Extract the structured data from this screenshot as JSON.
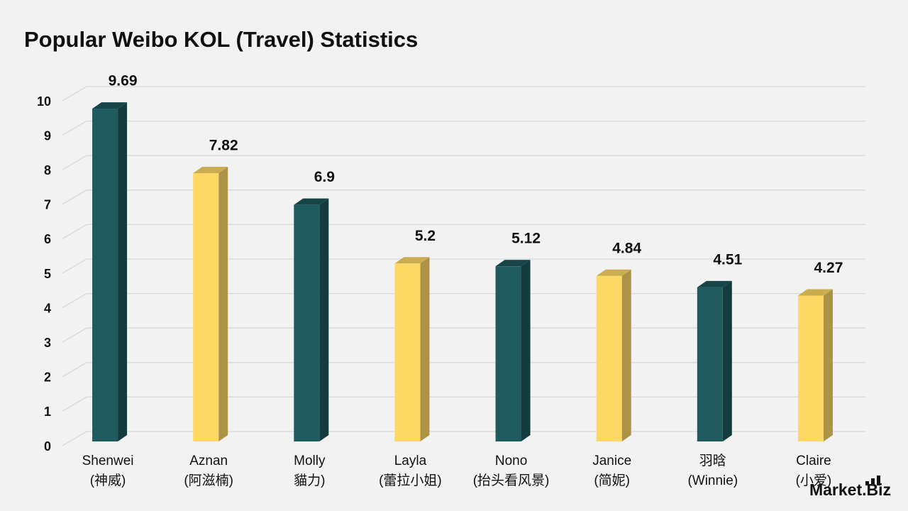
{
  "chart_data": {
    "type": "bar3d",
    "title": "Popular Weibo KOL (Travel) Statistics",
    "categories": [
      [
        "Shenwei",
        "(神威)"
      ],
      [
        "Aznan",
        "(阿滋楠)"
      ],
      [
        "Molly",
        "貓力)"
      ],
      [
        "Layla",
        "(蕾拉小姐)"
      ],
      [
        "Nono",
        "(抬头看风景)"
      ],
      [
        "Janice",
        "(简妮)"
      ],
      [
        "羽晗",
        "(Winnie)"
      ],
      [
        "Claire",
        "(小爱)"
      ]
    ],
    "values": [
      9.69,
      7.82,
      6.9,
      5.2,
      5.12,
      4.84,
      4.51,
      4.27
    ],
    "colors": [
      "#1f5a5f",
      "#fdd865",
      "#1f5a5f",
      "#fdd865",
      "#1f5a5f",
      "#fdd865",
      "#1f5a5f",
      "#fdd865"
    ],
    "ylim": [
      0,
      10
    ],
    "yticks": [
      0,
      1,
      2,
      3,
      4,
      5,
      6,
      7,
      8,
      9,
      10
    ],
    "grid": true
  },
  "logo": "Market.Biz"
}
